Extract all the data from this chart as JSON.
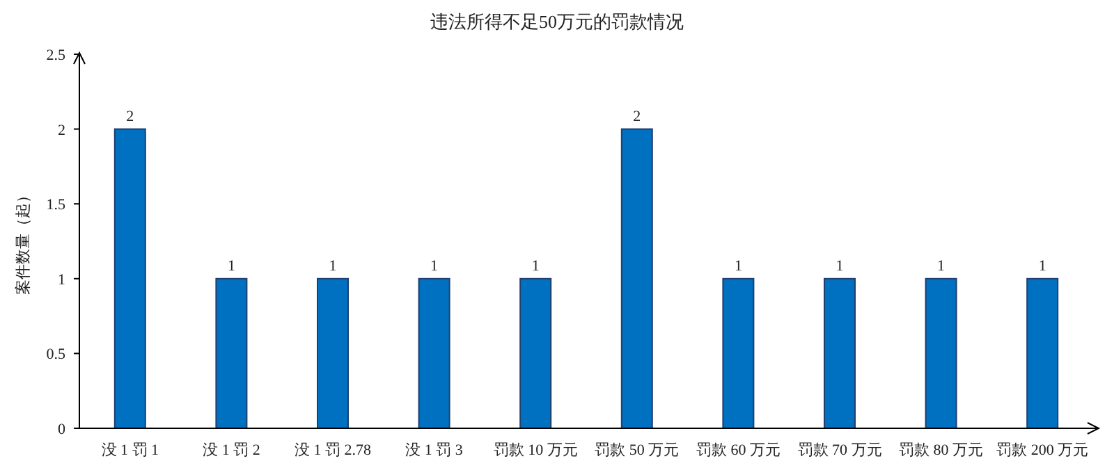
{
  "chart_data": {
    "type": "bar",
    "title": "违法所得不足50万元的罚款情况",
    "ylabel": "案件数量（起）",
    "categories": [
      "没 1 罚 1",
      "没 1 罚 2",
      "没 1 罚 2.78",
      "没 1 罚 3",
      "罚款 10 万元",
      "罚款 50 万元",
      "罚款 60 万元",
      "罚款 70 万元",
      "罚款 80 万元",
      "罚款 200 万元"
    ],
    "values": [
      2,
      1,
      1,
      1,
      1,
      2,
      1,
      1,
      1,
      1
    ],
    "color": "#0070c0",
    "ylim": [
      0,
      2.5
    ],
    "yticks": [
      0,
      0.5,
      1,
      1.5,
      2,
      2.5
    ],
    "data_labels": true,
    "grid": false
  }
}
